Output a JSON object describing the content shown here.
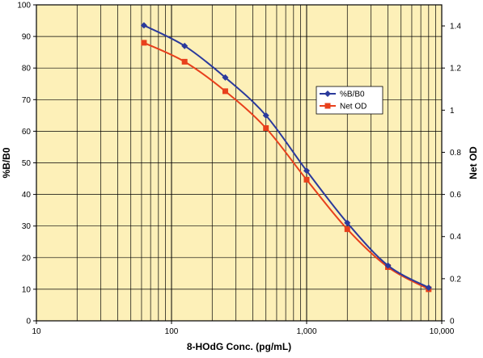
{
  "chart_data": {
    "type": "line",
    "xlabel": "8-HOdG Conc. (pg/mL)",
    "ylabel": "%B/B0",
    "y2label": "Net OD",
    "x_scale": "log",
    "xlim": [
      10,
      10000
    ],
    "ylim": [
      0,
      100
    ],
    "y2lim": [
      0,
      1.5
    ],
    "grid": true,
    "legend_position": "center-right",
    "background": "#fdf0b8",
    "x_ticks": [
      {
        "value": 10,
        "label": "10"
      },
      {
        "value": 100,
        "label": "100"
      },
      {
        "value": 1000,
        "label": "1,000"
      },
      {
        "value": 10000,
        "label": "10,000"
      }
    ],
    "y_ticks": [
      {
        "value": 0,
        "label": "0"
      },
      {
        "value": 10,
        "label": "10"
      },
      {
        "value": 20,
        "label": "20"
      },
      {
        "value": 30,
        "label": "30"
      },
      {
        "value": 40,
        "label": "40"
      },
      {
        "value": 50,
        "label": "50"
      },
      {
        "value": 60,
        "label": "60"
      },
      {
        "value": 70,
        "label": "70"
      },
      {
        "value": 80,
        "label": "80"
      },
      {
        "value": 90,
        "label": "90"
      },
      {
        "value": 100,
        "label": "100"
      }
    ],
    "y2_ticks": [
      {
        "value": 0,
        "label": "0"
      },
      {
        "value": 0.2,
        "label": "0.2"
      },
      {
        "value": 0.4,
        "label": "0.4"
      },
      {
        "value": 0.6,
        "label": "0.6"
      },
      {
        "value": 0.8,
        "label": "0.8"
      },
      {
        "value": 1.0,
        "label": "1"
      },
      {
        "value": 1.2,
        "label": "1.2"
      },
      {
        "value": 1.4,
        "label": "1.4"
      }
    ],
    "x": [
      62.5,
      125,
      250,
      500,
      1000,
      2000,
      4000,
      8000
    ],
    "series": [
      {
        "name": "%B/B0",
        "axis": "left",
        "marker": "diamond",
        "color": "#2b3a9c",
        "values": [
          93.5,
          87,
          77,
          65,
          47.5,
          31,
          17.5,
          10.5
        ]
      },
      {
        "name": "Net OD",
        "axis": "right",
        "marker": "square",
        "color": "#e8401c",
        "values": [
          1.32,
          1.23,
          1.09,
          0.915,
          0.67,
          0.435,
          0.255,
          0.15
        ]
      }
    ]
  }
}
